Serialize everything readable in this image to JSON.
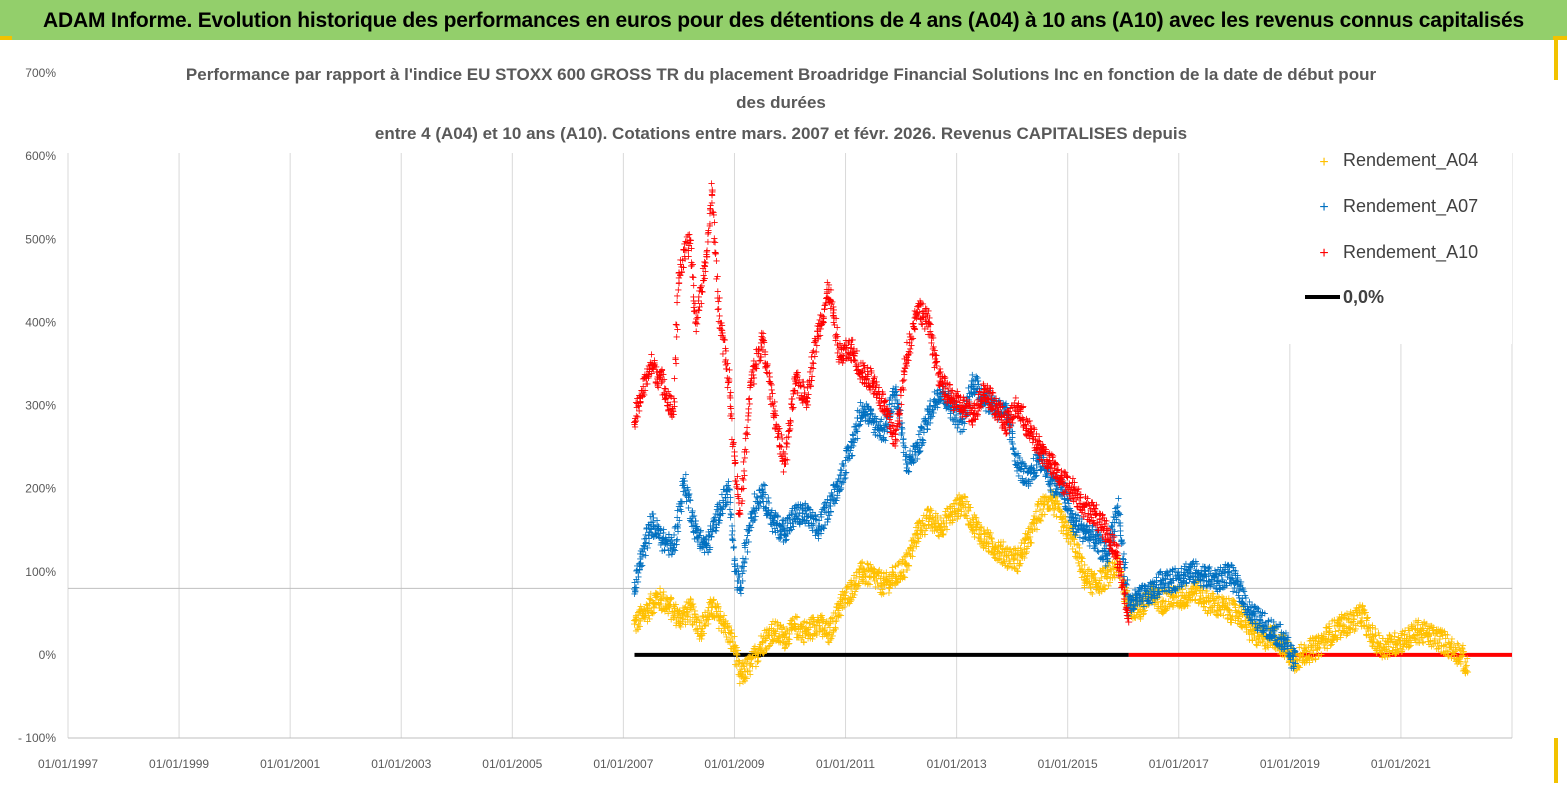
{
  "header": {
    "banner_text": "ADAM Informe. Evolution historique des performances en euros pour des détentions de 4 ans (A04) à 10 ans (A10) avec les revenus connus capitalisés"
  },
  "colors": {
    "banner": "#93cf6b",
    "A04": "#ffc000",
    "A07": "#0070c0",
    "A10": "#ff0000",
    "zero": "#000000",
    "grid": "#d9d9d9"
  },
  "chart_data": {
    "type": "scatter",
    "title_lines": [
      "Performance par rapport à l'indice EU STOXX 600 GROSS TR  du placement Broadridge Financial Solutions Inc en fonction de la date de début pour",
      "des durées",
      "entre 4 (A04) et 10 ans (A10). Cotations entre mars. 2007 et févr. 2026. Revenus CAPITALISES depuis"
    ],
    "x_tick_labels": [
      "01/01/1997",
      "01/01/1999",
      "01/01/2001",
      "01/01/2003",
      "01/01/2005",
      "01/01/2007",
      "01/01/2009",
      "01/01/2011",
      "01/01/2013",
      "01/01/2015",
      "01/01/2017",
      "01/01/2019",
      "01/01/2021"
    ],
    "x_tick_years": [
      1997,
      1999,
      2001,
      2003,
      2005,
      2007,
      2009,
      2011,
      2013,
      2015,
      2017,
      2019,
      2021
    ],
    "xlim": [
      1997.0,
      2023.0
    ],
    "y_tick_labels": [
      "700%",
      "600%",
      "500%",
      "400%",
      "300%",
      "200%",
      "100%",
      "0%",
      "- 100%"
    ],
    "y_tick_values": [
      700,
      600,
      500,
      400,
      300,
      200,
      100,
      0,
      -100
    ],
    "ylim": [
      -100,
      700
    ],
    "legend": [
      {
        "key": "A04",
        "label": "Rendement_A04"
      },
      {
        "key": "A07",
        "label": "Rendement_A07"
      },
      {
        "key": "A10",
        "label": "Rendement_A10"
      },
      {
        "key": "zero",
        "label": "0,0%"
      }
    ],
    "series": [
      {
        "name": "Rendement_A04",
        "x_range": [
          2007.2,
          2022.2
        ],
        "x": [
          2007.2,
          2007.4,
          2007.6,
          2007.8,
          2008.0,
          2008.2,
          2008.4,
          2008.6,
          2008.8,
          2009.0,
          2009.1,
          2009.3,
          2009.5,
          2009.7,
          2009.9,
          2010.1,
          2010.3,
          2010.5,
          2010.7,
          2010.9,
          2011.1,
          2011.3,
          2011.5,
          2011.7,
          2011.9,
          2012.1,
          2012.3,
          2012.5,
          2012.7,
          2012.9,
          2013.1,
          2013.3,
          2013.5,
          2013.7,
          2013.9,
          2014.1,
          2014.3,
          2014.5,
          2014.7,
          2014.9,
          2015.1,
          2015.3,
          2015.5,
          2015.7,
          2015.9,
          2016.1,
          2016.3,
          2016.5,
          2016.7,
          2016.9,
          2017.1,
          2017.3,
          2017.5,
          2017.7,
          2017.9,
          2018.1,
          2018.3,
          2018.5,
          2018.7,
          2018.9,
          2019.1,
          2019.3,
          2019.5,
          2019.7,
          2019.9,
          2020.1,
          2020.3,
          2020.5,
          2020.7,
          2020.9,
          2021.1,
          2021.3,
          2021.5,
          2021.7,
          2021.9,
          2022.1,
          2022.2
        ],
        "y": [
          38,
          52,
          70,
          62,
          45,
          55,
          32,
          58,
          40,
          10,
          -25,
          -10,
          15,
          30,
          22,
          35,
          28,
          40,
          25,
          60,
          80,
          100,
          95,
          85,
          95,
          110,
          150,
          165,
          155,
          170,
          185,
          160,
          140,
          130,
          120,
          115,
          140,
          175,
          190,
          160,
          140,
          95,
          85,
          95,
          110,
          60,
          55,
          72,
          65,
          70,
          70,
          80,
          65,
          60,
          55,
          50,
          30,
          20,
          25,
          10,
          -5,
          5,
          10,
          25,
          35,
          40,
          50,
          20,
          10,
          15,
          20,
          30,
          25,
          20,
          10,
          0,
          -20
        ]
      },
      {
        "name": "Rendement_A07",
        "x_range": [
          2007.2,
          2019.1
        ],
        "x": [
          2007.2,
          2007.3,
          2007.5,
          2007.7,
          2007.9,
          2008.1,
          2008.3,
          2008.5,
          2008.7,
          2008.9,
          2009.0,
          2009.1,
          2009.3,
          2009.5,
          2009.7,
          2009.9,
          2010.1,
          2010.3,
          2010.5,
          2010.7,
          2010.9,
          2011.1,
          2011.3,
          2011.5,
          2011.7,
          2011.9,
          2012.1,
          2012.3,
          2012.5,
          2012.7,
          2012.9,
          2013.1,
          2013.3,
          2013.5,
          2013.7,
          2013.9,
          2014.1,
          2014.3,
          2014.5,
          2014.7,
          2014.9,
          2015.1,
          2015.3,
          2015.5,
          2015.7,
          2015.9,
          2016.1,
          2016.3,
          2016.5,
          2016.7,
          2016.9,
          2017.1,
          2017.3,
          2017.5,
          2017.7,
          2017.9,
          2018.1,
          2018.3,
          2018.5,
          2018.7,
          2018.9,
          2019.1
        ],
        "y": [
          80,
          110,
          160,
          140,
          130,
          210,
          150,
          130,
          170,
          200,
          110,
          80,
          170,
          200,
          160,
          150,
          170,
          170,
          150,
          180,
          210,
          250,
          300,
          280,
          270,
          320,
          230,
          250,
          290,
          320,
          300,
          280,
          330,
          310,
          300,
          290,
          230,
          210,
          240,
          210,
          200,
          160,
          150,
          140,
          120,
          180,
          60,
          70,
          75,
          90,
          90,
          100,
          100,
          95,
          90,
          100,
          80,
          50,
          40,
          30,
          20,
          -10
        ]
      },
      {
        "name": "Rendement_A10",
        "x_range": [
          2007.2,
          2016.1
        ],
        "x": [
          2007.2,
          2007.3,
          2007.5,
          2007.7,
          2007.9,
          2008.0,
          2008.2,
          2008.3,
          2008.5,
          2008.6,
          2008.7,
          2008.8,
          2008.9,
          2009.0,
          2009.1,
          2009.3,
          2009.5,
          2009.7,
          2009.9,
          2010.1,
          2010.3,
          2010.5,
          2010.7,
          2010.9,
          2011.1,
          2011.3,
          2011.5,
          2011.7,
          2011.9,
          2012.1,
          2012.3,
          2012.5,
          2012.7,
          2012.9,
          2013.1,
          2013.3,
          2013.5,
          2013.7,
          2013.9,
          2014.1,
          2014.3,
          2014.5,
          2014.7,
          2014.9,
          2015.1,
          2015.3,
          2015.5,
          2015.7,
          2015.9,
          2016.1
        ],
        "y": [
          280,
          310,
          350,
          330,
          290,
          460,
          500,
          400,
          480,
          560,
          430,
          380,
          330,
          240,
          170,
          330,
          380,
          300,
          230,
          330,
          310,
          390,
          440,
          360,
          370,
          340,
          330,
          300,
          260,
          360,
          420,
          400,
          330,
          310,
          300,
          290,
          320,
          300,
          280,
          300,
          270,
          250,
          230,
          210,
          200,
          180,
          170,
          150,
          120,
          40
        ]
      }
    ],
    "zero_line": {
      "value": 0,
      "segments": [
        {
          "x0": 2007.2,
          "x1": 2016.1,
          "color_key": "zero"
        },
        {
          "x0": 2016.1,
          "x1": 2023.0,
          "color_key": "A10"
        }
      ]
    }
  }
}
